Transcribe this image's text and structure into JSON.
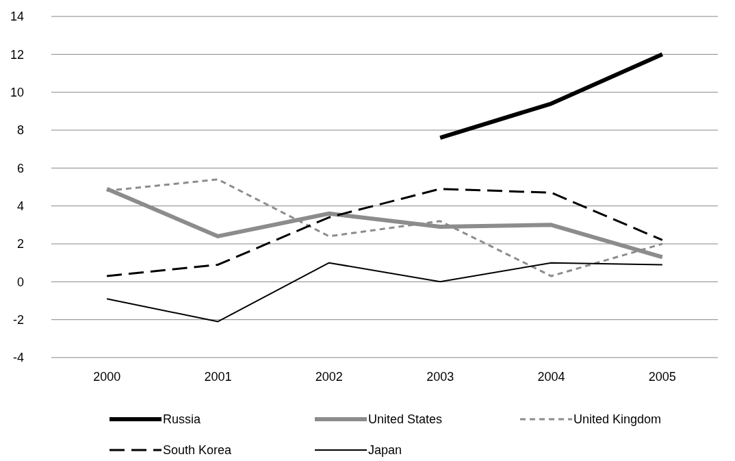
{
  "chart_data": {
    "type": "line",
    "categories": [
      "2000",
      "2001",
      "2002",
      "2003",
      "2004",
      "2005"
    ],
    "ylim": [
      -4,
      14
    ],
    "yticks": [
      -4,
      -2,
      0,
      2,
      4,
      6,
      8,
      10,
      12,
      14
    ],
    "grid": "y",
    "legend": "bottom",
    "series": [
      {
        "name": "Russia",
        "color": "#000000",
        "line_style": "solid",
        "values": [
          null,
          null,
          null,
          7.6,
          9.4,
          12.0
        ]
      },
      {
        "name": "United States",
        "color": "#8c8c8c",
        "line_style": "solid",
        "values": [
          4.9,
          2.4,
          3.6,
          2.9,
          3.0,
          1.3
        ]
      },
      {
        "name": "United Kingdom",
        "color": "#8c8c8c",
        "line_style": "dashed",
        "values": [
          4.8,
          5.4,
          2.4,
          3.2,
          0.3,
          2.0
        ]
      },
      {
        "name": "South Korea",
        "color": "#000000",
        "line_style": "dashed",
        "values": [
          0.3,
          0.9,
          3.4,
          4.9,
          4.7,
          2.2
        ]
      },
      {
        "name": "Japan",
        "color": "#000000",
        "line_style": "solid",
        "values": [
          -0.9,
          -2.1,
          1.0,
          0.0,
          1.0,
          0.9
        ]
      }
    ]
  }
}
